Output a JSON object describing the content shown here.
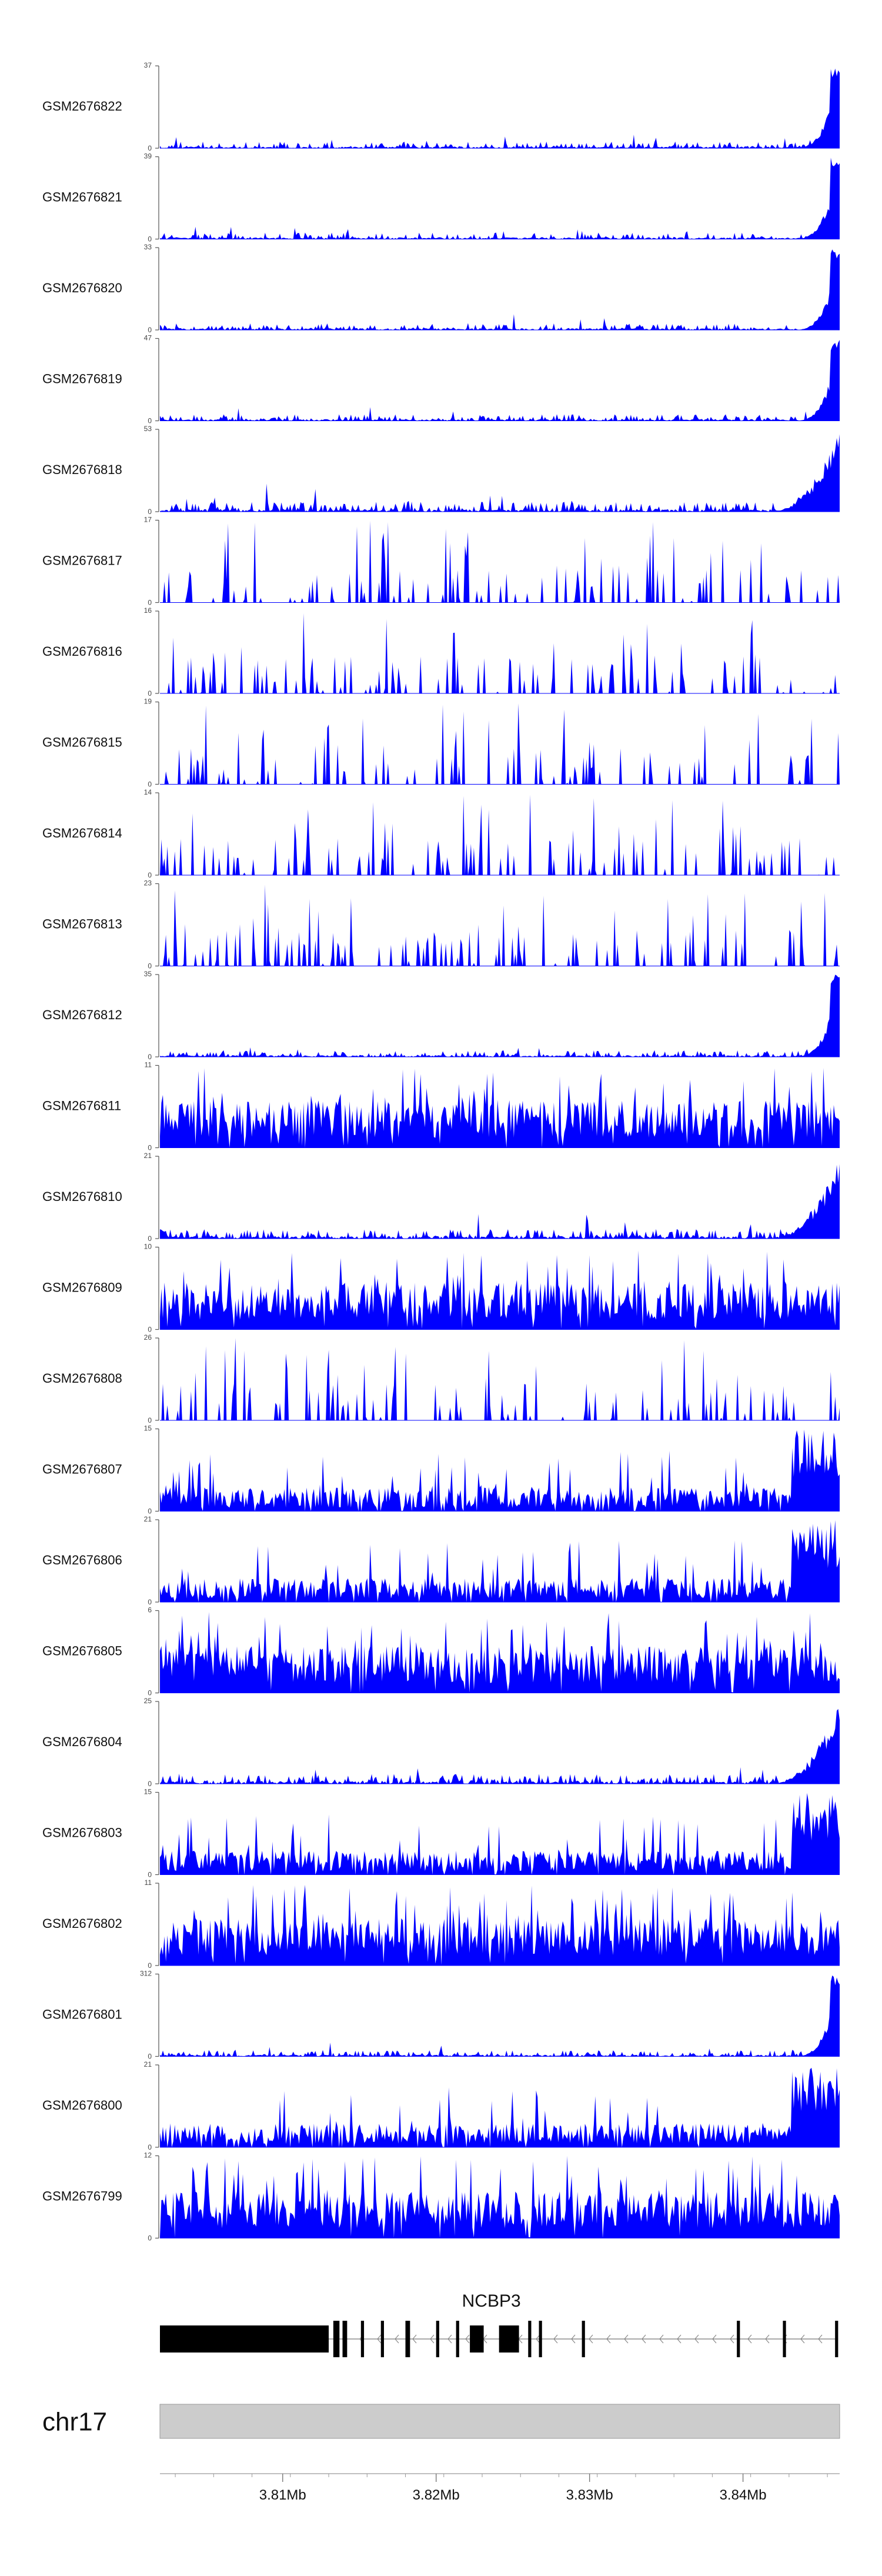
{
  "chart_data": {
    "type": "area",
    "region": {
      "chromosome": "chr17",
      "start_mb": 3.802,
      "end_mb": 3.8463
    },
    "series_color": "#0000ff",
    "tracks": [
      {
        "name": "GSM2676822",
        "ymax": "37",
        "ymin": "0",
        "profile": "end_peak",
        "seed": 22
      },
      {
        "name": "GSM2676821",
        "ymax": "39",
        "ymin": "0",
        "profile": "end_peak",
        "seed": 21
      },
      {
        "name": "GSM2676820",
        "ymax": "33",
        "ymin": "0",
        "profile": "end_peak",
        "seed": 20
      },
      {
        "name": "GSM2676819",
        "ymax": "47",
        "ymin": "0",
        "profile": "end_peak",
        "seed": 19
      },
      {
        "name": "GSM2676818",
        "ymax": "53",
        "ymin": "0",
        "profile": "end_peak_moderate",
        "seed": 18
      },
      {
        "name": "GSM2676817",
        "ymax": "17",
        "ymin": "0",
        "profile": "sparse",
        "seed": 17
      },
      {
        "name": "GSM2676816",
        "ymax": "16",
        "ymin": "0",
        "profile": "sparse",
        "seed": 16
      },
      {
        "name": "GSM2676815",
        "ymax": "19",
        "ymin": "0",
        "profile": "sparse",
        "seed": 15
      },
      {
        "name": "GSM2676814",
        "ymax": "14",
        "ymin": "0",
        "profile": "sparse",
        "seed": 14
      },
      {
        "name": "GSM2676813",
        "ymax": "23",
        "ymin": "0",
        "profile": "sparse",
        "seed": 13
      },
      {
        "name": "GSM2676812",
        "ymax": "35",
        "ymin": "0",
        "profile": "end_peak",
        "seed": 12
      },
      {
        "name": "GSM2676811",
        "ymax": "11",
        "ymin": "0",
        "profile": "dense",
        "seed": 11
      },
      {
        "name": "GSM2676810",
        "ymax": "21",
        "ymin": "0",
        "profile": "end_peak_moderate",
        "seed": 10
      },
      {
        "name": "GSM2676809",
        "ymax": "10",
        "ymin": "0",
        "profile": "dense",
        "seed": 9
      },
      {
        "name": "GSM2676808",
        "ymax": "26",
        "ymin": "0",
        "profile": "sparse",
        "seed": 8
      },
      {
        "name": "GSM2676807",
        "ymax": "15",
        "ymin": "0",
        "profile": "medium",
        "seed": 7
      },
      {
        "name": "GSM2676806",
        "ymax": "21",
        "ymin": "0",
        "profile": "medium",
        "seed": 6
      },
      {
        "name": "GSM2676805",
        "ymax": "6",
        "ymin": "0",
        "profile": "dense",
        "seed": 5
      },
      {
        "name": "GSM2676804",
        "ymax": "25",
        "ymin": "0",
        "profile": "end_peak_moderate",
        "seed": 4
      },
      {
        "name": "GSM2676803",
        "ymax": "15",
        "ymin": "0",
        "profile": "medium",
        "seed": 3
      },
      {
        "name": "GSM2676802",
        "ymax": "11",
        "ymin": "0",
        "profile": "dense",
        "seed": 2
      },
      {
        "name": "GSM2676801",
        "ymax": "312",
        "ymin": "0",
        "profile": "end_peak",
        "seed": 1
      },
      {
        "name": "GSM2676800",
        "ymax": "21",
        "ymin": "0",
        "profile": "medium",
        "seed": 100
      },
      {
        "name": "GSM2676799",
        "ymax": "12",
        "ymin": "0",
        "profile": "dense",
        "seed": 99
      }
    ],
    "gene": {
      "name": "NCBP3",
      "strand": "-",
      "exons_mb": [
        [
          3.802,
          3.813
        ],
        [
          3.8133,
          3.8137
        ],
        [
          3.8139,
          3.8142
        ],
        [
          3.8151,
          3.8153
        ],
        [
          3.8164,
          3.8166
        ],
        [
          3.818,
          3.8183
        ],
        [
          3.82,
          3.8202
        ],
        [
          3.8213,
          3.8215
        ],
        [
          3.8222,
          3.8231
        ],
        [
          3.8241,
          3.8254
        ],
        [
          3.826,
          3.8262
        ],
        [
          3.8267,
          3.8269
        ],
        [
          3.8295,
          3.8297
        ],
        [
          3.8396,
          3.8398
        ],
        [
          3.8426,
          3.8428
        ],
        [
          3.846,
          3.8462
        ]
      ]
    },
    "axis": {
      "label": "chr17",
      "ticks": [
        {
          "value": 3.81,
          "label": "3.81Mb"
        },
        {
          "value": 3.82,
          "label": "3.82Mb"
        },
        {
          "value": 3.83,
          "label": "3.83Mb"
        },
        {
          "value": 3.84,
          "label": "3.84Mb"
        }
      ]
    }
  }
}
